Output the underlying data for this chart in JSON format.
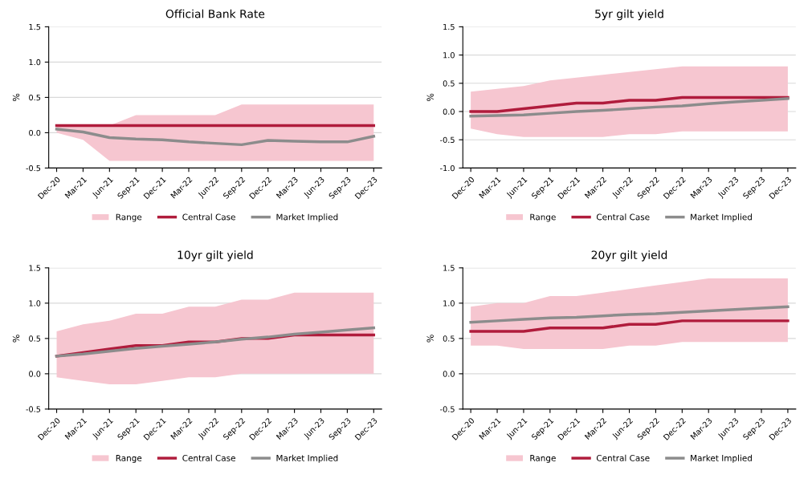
{
  "chart_data": [
    {
      "type": "line",
      "title": "Official Bank Rate",
      "ylabel": "%",
      "categories": [
        "Dec-20",
        "Mar-21",
        "Jun-21",
        "Sep-21",
        "Dec-21",
        "Mar-22",
        "Jun-22",
        "Sep-22",
        "Dec-22",
        "Mar-23",
        "Jun-23",
        "Sep-23",
        "Dec-23"
      ],
      "ylim": [
        -0.5,
        1.5
      ],
      "yticks": [
        {
          "value": -0.5,
          "label": "-0.5"
        },
        {
          "value": 0,
          "label": "0.0"
        },
        {
          "value": 0.5,
          "label": "0.5"
        },
        {
          "value": 1,
          "label": "1.0"
        },
        {
          "value": 1.5,
          "label": "1.5"
        }
      ],
      "grid": "y",
      "legend": "bottom",
      "series": [
        {
          "name": "Range",
          "color": "#f6c6d0",
          "values": [
            null,
            null,
            null,
            null,
            null,
            null,
            null,
            null,
            null,
            null,
            null,
            null,
            null
          ],
          "lower": [
            0.0,
            -0.1,
            -0.4,
            -0.4,
            -0.4,
            -0.4,
            -0.4,
            -0.4,
            -0.4,
            -0.4,
            -0.4,
            -0.4,
            -0.4
          ],
          "upper": [
            0.1,
            0.1,
            0.1,
            0.25,
            0.25,
            0.25,
            0.25,
            0.4,
            0.4,
            0.4,
            0.4,
            0.4,
            0.4
          ]
        },
        {
          "name": "Central Case",
          "color": "#b01c3c",
          "values": [
            0.1,
            0.1,
            0.1,
            0.1,
            0.1,
            0.1,
            0.1,
            0.1,
            0.1,
            0.1,
            0.1,
            0.1,
            0.1
          ]
        },
        {
          "name": "Market Implied",
          "color": "#8c8c8c",
          "values": [
            0.05,
            0.01,
            -0.07,
            -0.09,
            -0.1,
            -0.13,
            -0.15,
            -0.17,
            -0.11,
            -0.12,
            -0.13,
            -0.13,
            -0.05
          ]
        }
      ]
    },
    {
      "type": "line",
      "title": "5yr gilt yield",
      "ylabel": "%",
      "categories": [
        "Dec-20",
        "Mar-21",
        "Jun-21",
        "Sep-21",
        "Dec-21",
        "Mar-22",
        "Jun-22",
        "Sep-22",
        "Dec-22",
        "Mar-23",
        "Jun-23",
        "Sep-23",
        "Dec-23"
      ],
      "ylim": [
        -1,
        1.5
      ],
      "yticks": [
        {
          "value": -1,
          "label": "-1.0"
        },
        {
          "value": -0.5,
          "label": "-0.5"
        },
        {
          "value": 0,
          "label": "0.0"
        },
        {
          "value": 0.5,
          "label": "0.5"
        },
        {
          "value": 1,
          "label": "1.0"
        },
        {
          "value": 1.5,
          "label": "1.5"
        }
      ],
      "grid": "y",
      "legend": "bottom",
      "series": [
        {
          "name": "Range",
          "color": "#f6c6d0",
          "values": [
            null,
            null,
            null,
            null,
            null,
            null,
            null,
            null,
            null,
            null,
            null,
            null,
            null
          ],
          "lower": [
            -0.3,
            -0.4,
            -0.45,
            -0.45,
            -0.45,
            -0.45,
            -0.4,
            -0.4,
            -0.35,
            -0.35,
            -0.35,
            -0.35,
            -0.35
          ],
          "upper": [
            0.35,
            0.4,
            0.45,
            0.55,
            0.6,
            0.65,
            0.7,
            0.75,
            0.8,
            0.8,
            0.8,
            0.8,
            0.8
          ]
        },
        {
          "name": "Central Case",
          "color": "#b01c3c",
          "values": [
            0.0,
            0.0,
            0.05,
            0.1,
            0.15,
            0.15,
            0.2,
            0.2,
            0.25,
            0.25,
            0.25,
            0.25,
            0.25
          ]
        },
        {
          "name": "Market Implied",
          "color": "#8c8c8c",
          "values": [
            -0.08,
            -0.07,
            -0.06,
            -0.03,
            0.0,
            0.02,
            0.05,
            0.08,
            0.1,
            0.14,
            0.17,
            0.2,
            0.23
          ]
        }
      ]
    },
    {
      "type": "line",
      "title": "10yr gilt yield",
      "ylabel": "%",
      "categories": [
        "Dec-20",
        "Mar-21",
        "Jun-21",
        "Sep-21",
        "Dec-21",
        "Mar-22",
        "Jun-22",
        "Sep-22",
        "Dec-22",
        "Mar-23",
        "Jun-23",
        "Sep-23",
        "Dec-23"
      ],
      "ylim": [
        -0.5,
        1.5
      ],
      "yticks": [
        {
          "value": -0.5,
          "label": "-0.5"
        },
        {
          "value": 0,
          "label": "0.0"
        },
        {
          "value": 0.5,
          "label": "0.5"
        },
        {
          "value": 1,
          "label": "1.0"
        },
        {
          "value": 1.5,
          "label": "1.5"
        }
      ],
      "grid": "y",
      "legend": "bottom",
      "series": [
        {
          "name": "Range",
          "color": "#f6c6d0",
          "values": [
            null,
            null,
            null,
            null,
            null,
            null,
            null,
            null,
            null,
            null,
            null,
            null,
            null
          ],
          "lower": [
            -0.05,
            -0.1,
            -0.15,
            -0.15,
            -0.1,
            -0.05,
            -0.05,
            0.0,
            0.0,
            0.0,
            0.0,
            0.0,
            0.0
          ],
          "upper": [
            0.6,
            0.7,
            0.75,
            0.85,
            0.85,
            0.95,
            0.95,
            1.05,
            1.05,
            1.15,
            1.15,
            1.15,
            1.15
          ]
        },
        {
          "name": "Central Case",
          "color": "#b01c3c",
          "values": [
            0.25,
            0.3,
            0.35,
            0.4,
            0.4,
            0.45,
            0.45,
            0.5,
            0.5,
            0.55,
            0.55,
            0.55,
            0.55
          ]
        },
        {
          "name": "Market Implied",
          "color": "#8c8c8c",
          "values": [
            0.25,
            0.28,
            0.32,
            0.36,
            0.39,
            0.42,
            0.45,
            0.49,
            0.52,
            0.56,
            0.59,
            0.62,
            0.65
          ]
        }
      ]
    },
    {
      "type": "line",
      "title": "20yr gilt yield",
      "ylabel": "%",
      "categories": [
        "Dec-20",
        "Mar-21",
        "Jun-21",
        "Sep-21",
        "Dec-21",
        "Mar-22",
        "Jun-22",
        "Sep-22",
        "Dec-22",
        "Mar-23",
        "Jun-23",
        "Sep-23",
        "Dec-23"
      ],
      "ylim": [
        -0.5,
        1.5
      ],
      "yticks": [
        {
          "value": -0.5,
          "label": "-0.5"
        },
        {
          "value": 0,
          "label": "0.0"
        },
        {
          "value": 0.5,
          "label": "0.5"
        },
        {
          "value": 1,
          "label": "1.0"
        },
        {
          "value": 1.5,
          "label": "1.5"
        }
      ],
      "grid": "y",
      "legend": "bottom",
      "series": [
        {
          "name": "Range",
          "color": "#f6c6d0",
          "values": [
            null,
            null,
            null,
            null,
            null,
            null,
            null,
            null,
            null,
            null,
            null,
            null,
            null
          ],
          "lower": [
            0.4,
            0.4,
            0.35,
            0.35,
            0.35,
            0.35,
            0.4,
            0.4,
            0.45,
            0.45,
            0.45,
            0.45,
            0.45
          ],
          "upper": [
            0.95,
            1.0,
            1.0,
            1.1,
            1.1,
            1.15,
            1.2,
            1.25,
            1.3,
            1.35,
            1.35,
            1.35,
            1.35
          ]
        },
        {
          "name": "Central Case",
          "color": "#b01c3c",
          "values": [
            0.6,
            0.6,
            0.6,
            0.65,
            0.65,
            0.65,
            0.7,
            0.7,
            0.75,
            0.75,
            0.75,
            0.75,
            0.75
          ]
        },
        {
          "name": "Market Implied",
          "color": "#8c8c8c",
          "values": [
            0.73,
            0.75,
            0.77,
            0.79,
            0.8,
            0.82,
            0.84,
            0.85,
            0.87,
            0.89,
            0.91,
            0.93,
            0.95
          ]
        }
      ]
    }
  ]
}
